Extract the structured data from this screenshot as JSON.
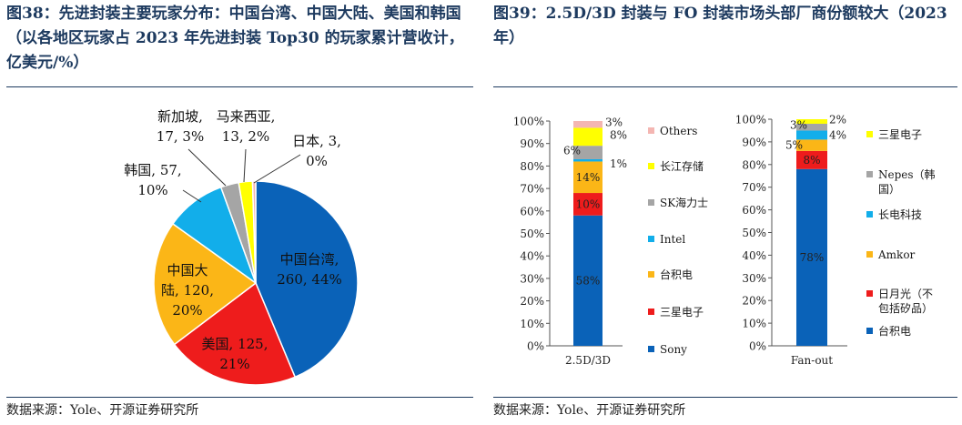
{
  "left": {
    "title": "图38：先进封装主要玩家分布：中国台湾、中国大陆、美国和韩国（以各地区玩家占 2023 年先进封装 Top30 的玩家累计营收计，亿美元/%）",
    "source": "数据来源：Yole、开源证券研究所"
  },
  "right": {
    "title": "图39：2.5D/3D 封装与 FO 封装市场头部厂商份额较大（2023 年）",
    "source": "数据来源：Yole、开源证券研究所"
  },
  "chart_data": [
    {
      "type": "pie",
      "slices": [
        {
          "label": "中国台湾",
          "value": 260,
          "pct": "44%",
          "text": "中国台湾,\n260, 44%",
          "color": "#0a62b8"
        },
        {
          "label": "美国",
          "value": 125,
          "pct": "21%",
          "text": "美国, 125,\n21%",
          "color": "#ee1c1c"
        },
        {
          "label": "中国大陆",
          "value": 120,
          "pct": "20%",
          "text": "中国大\n陆, 120,\n20%",
          "color": "#fbb617"
        },
        {
          "label": "韩国",
          "value": 57,
          "pct": "10%",
          "text": "韩国, 57,\n10%",
          "color": "#12aeea"
        },
        {
          "label": "新加坡",
          "value": 17,
          "pct": "3%",
          "text": "新加坡,\n17, 3%",
          "color": "#a5a5a5"
        },
        {
          "label": "马来西亚",
          "value": 13,
          "pct": "2%",
          "text": "马来西亚,\n13, 2%",
          "color": "#ffff00"
        },
        {
          "label": "日本",
          "value": 3,
          "pct": "0%",
          "text": "日本, 3,\n0%",
          "color": "#f4b6b2"
        }
      ]
    },
    {
      "type": "bar",
      "stacked": true,
      "categories": [
        "2.5D/3D"
      ],
      "ylim": [
        0,
        100
      ],
      "yticks": [
        "0%",
        "10%",
        "20%",
        "30%",
        "40%",
        "50%",
        "60%",
        "70%",
        "80%",
        "90%",
        "100%"
      ],
      "series": [
        {
          "name": "Sony",
          "values": [
            58
          ],
          "label": "58%",
          "color": "#0a62b8"
        },
        {
          "name": "三星电子",
          "values": [
            10
          ],
          "label": "10%",
          "color": "#ee1c1c"
        },
        {
          "name": "台积电",
          "values": [
            14
          ],
          "label": "14%",
          "color": "#fbb617"
        },
        {
          "name": "Intel",
          "values": [
            1
          ],
          "label": "1%",
          "color": "#12aeea"
        },
        {
          "name": "SK海力士",
          "values": [
            6
          ],
          "label": "6%",
          "color": "#a5a5a5"
        },
        {
          "name": "长江存储",
          "values": [
            8
          ],
          "label": "8%",
          "color": "#ffff00"
        },
        {
          "name": "Others",
          "values": [
            3
          ],
          "label": "3%",
          "color": "#f4b6b2"
        }
      ],
      "legend": [
        "Others",
        "长江存储",
        "SK海力士",
        "Intel",
        "台积电",
        "三星电子",
        "Sony"
      ]
    },
    {
      "type": "bar",
      "stacked": true,
      "categories": [
        "Fan-out"
      ],
      "ylim": [
        0,
        100
      ],
      "yticks": [
        "0%",
        "10%",
        "20%",
        "30%",
        "40%",
        "50%",
        "60%",
        "70%",
        "80%",
        "90%",
        "100%"
      ],
      "series": [
        {
          "name": "台积电",
          "values": [
            78
          ],
          "label": "78%",
          "color": "#0a62b8"
        },
        {
          "name": "日月光（不包括矽品）",
          "values": [
            8
          ],
          "label": "8%",
          "color": "#ee1c1c"
        },
        {
          "name": "Amkor",
          "values": [
            5
          ],
          "label": "5%",
          "color": "#fbb617"
        },
        {
          "name": "长电科技",
          "values": [
            4
          ],
          "label": "4%",
          "color": "#12aeea"
        },
        {
          "name": "Nepes（韩国）",
          "values": [
            3
          ],
          "label": "3%",
          "color": "#a5a5a5"
        },
        {
          "name": "三星电子",
          "values": [
            2
          ],
          "label": "2%",
          "color": "#ffff00"
        }
      ],
      "legend": [
        "三星电子",
        "Nepes（韩国）",
        "长电科技",
        "Amkor",
        "日月光（不包括矽品）",
        "台积电"
      ]
    }
  ]
}
